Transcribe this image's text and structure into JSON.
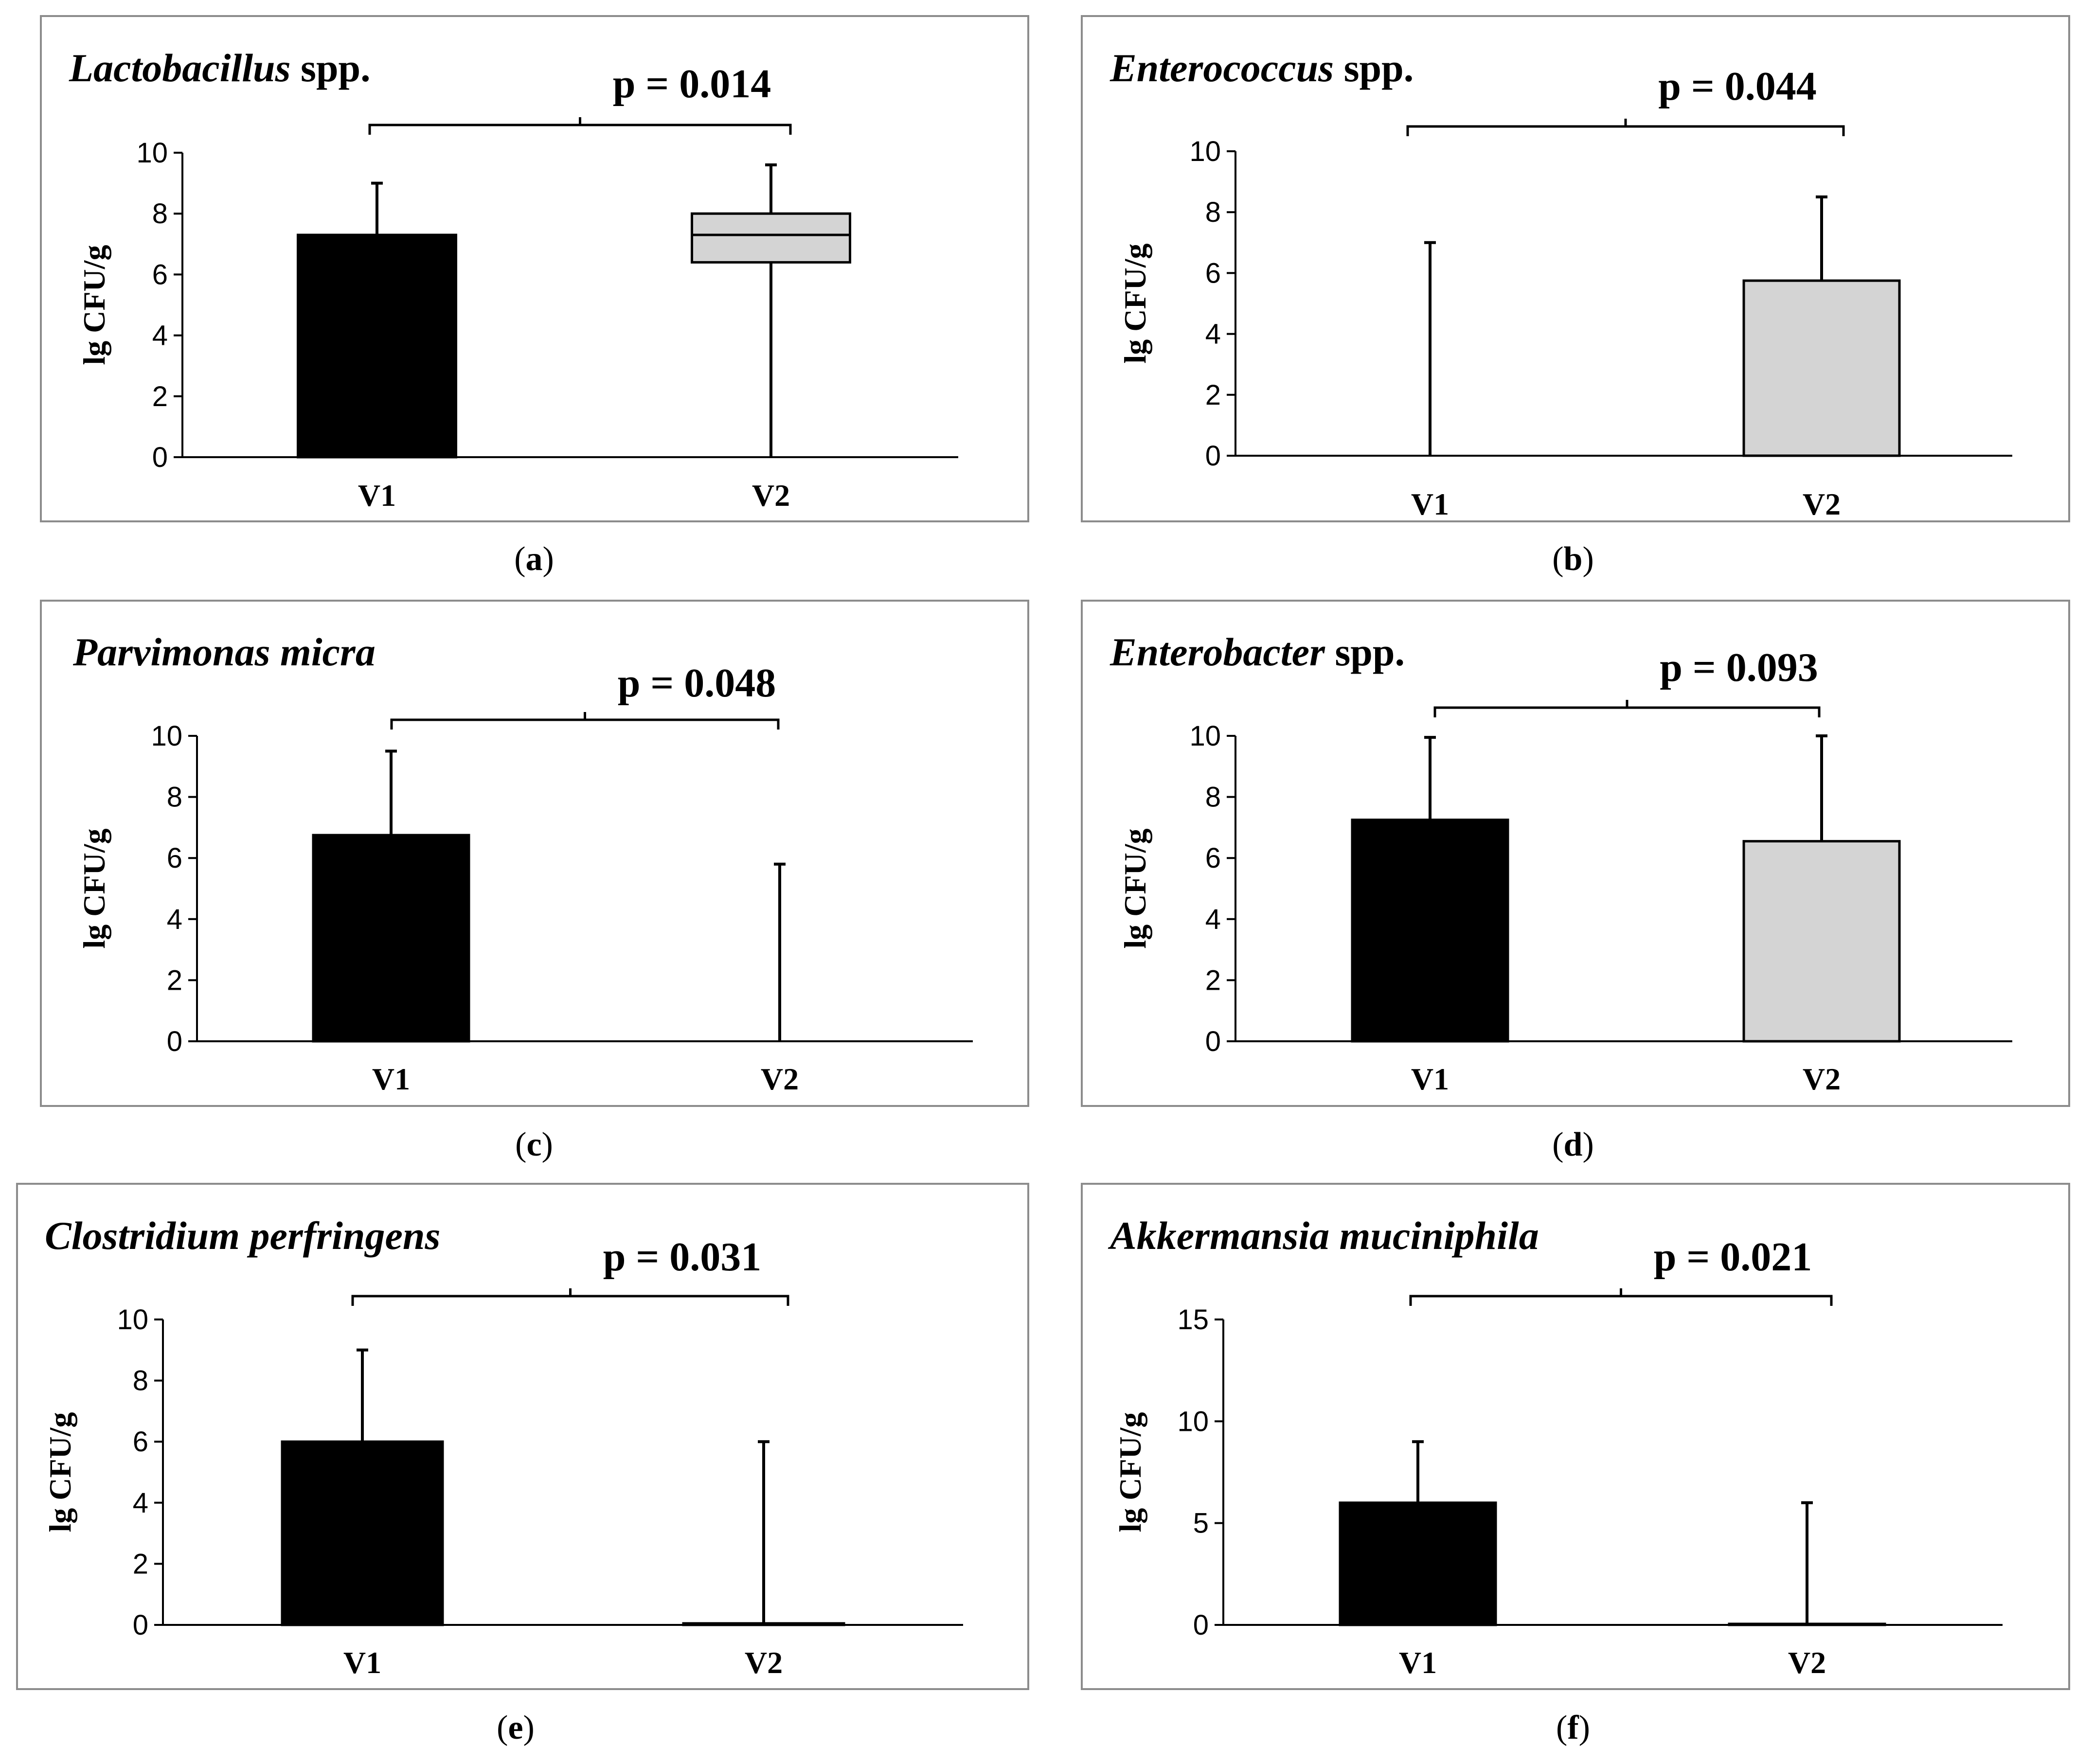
{
  "colors": {
    "v1": "#000000",
    "v2": "#d4d4d4",
    "frame": "#8c8c8c"
  },
  "chart_data": [
    {
      "type": "bar",
      "panel": "(a)",
      "title_italic": "Lactobacillus",
      "title_rest": " spp.",
      "ylabel": "lg CFU/g",
      "ylim": [
        0,
        10
      ],
      "yticks": [
        0,
        2,
        4,
        6,
        8,
        10
      ],
      "categories": [
        "V1",
        "V2"
      ],
      "bars": [
        {
          "category": "V1",
          "value": 7.3,
          "error_upper": 9.0,
          "error_lower": 7.3
        },
        {
          "category": "V2",
          "value": 8.0,
          "box_lower": 6.4,
          "median": 7.3,
          "error_upper": 9.6,
          "error_lower": 0
        }
      ],
      "pvalue": "p = 0.014"
    },
    {
      "type": "bar",
      "panel": "(b)",
      "title_italic": "Enterococcus",
      "title_rest": " spp.",
      "ylabel": "lg CFU/g",
      "ylim": [
        0,
        10
      ],
      "yticks": [
        0,
        2,
        4,
        6,
        8,
        10
      ],
      "categories": [
        "V1",
        "V2"
      ],
      "bars": [
        {
          "category": "V1",
          "value": 0,
          "error_upper": 7.0,
          "error_lower": 0
        },
        {
          "category": "V2",
          "value": 5.75,
          "error_upper": 8.5,
          "error_lower": 5.75
        }
      ],
      "pvalue": "p = 0.044"
    },
    {
      "type": "bar",
      "panel": "(c)",
      "title_italic": "Parvimonas micra",
      "title_rest": "",
      "ylabel": "lg CFU/g",
      "ylim": [
        0,
        10
      ],
      "yticks": [
        0,
        2,
        4,
        6,
        8,
        10
      ],
      "categories": [
        "V1",
        "V2"
      ],
      "bars": [
        {
          "category": "V1",
          "value": 6.75,
          "error_upper": 9.5,
          "error_lower": 6.75
        },
        {
          "category": "V2",
          "value": 0,
          "error_upper": 5.8,
          "error_lower": 0
        }
      ],
      "pvalue": "p = 0.048"
    },
    {
      "type": "bar",
      "panel": "(d)",
      "title_italic": "Enterobacter",
      "title_rest": " spp.",
      "ylabel": "lg CFU/g",
      "ylim": [
        0,
        10
      ],
      "yticks": [
        0,
        2,
        4,
        6,
        8,
        10
      ],
      "categories": [
        "V1",
        "V2"
      ],
      "bars": [
        {
          "category": "V1",
          "value": 7.25,
          "error_upper": 9.95,
          "error_lower": 7.25
        },
        {
          "category": "V2",
          "value": 6.55,
          "error_upper": 10.0,
          "error_lower": 6.55
        }
      ],
      "pvalue": "p = 0.093"
    },
    {
      "type": "bar",
      "panel": "(e)",
      "title_italic": "Clostridium perfringens",
      "title_rest": "",
      "ylabel": "lg CFU/g",
      "ylim": [
        0,
        10
      ],
      "yticks": [
        0,
        2,
        4,
        6,
        8,
        10
      ],
      "categories": [
        "V1",
        "V2"
      ],
      "bars": [
        {
          "category": "V1",
          "value": 6.0,
          "error_upper": 9.0,
          "error_lower": 6.0
        },
        {
          "category": "V2",
          "value": 0.05,
          "error_upper": 6.0,
          "error_lower": 0
        }
      ],
      "pvalue": "p = 0.031"
    },
    {
      "type": "bar",
      "panel": "(f)",
      "title_italic": "Akkermansia muciniphila",
      "title_rest": "",
      "ylabel": "lg CFU/g",
      "ylim": [
        0,
        15
      ],
      "yticks": [
        0,
        5,
        10,
        15
      ],
      "categories": [
        "V1",
        "V2"
      ],
      "bars": [
        {
          "category": "V1",
          "value": 6.0,
          "error_upper": 9.0,
          "error_lower": 6.0
        },
        {
          "category": "V2",
          "value": 0.05,
          "error_upper": 6.0,
          "error_lower": 0
        }
      ],
      "pvalue": "p = 0.021"
    }
  ]
}
